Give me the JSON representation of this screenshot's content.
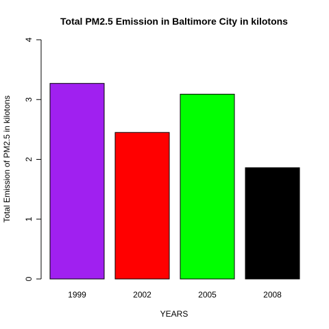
{
  "chart_data": {
    "type": "bar",
    "title": "Total PM2.5 Emission in Baltimore City in kilotons",
    "xlabel": "YEARS",
    "ylabel": "Total Emission of PM2.5 in kilotons",
    "categories": [
      "1999",
      "2002",
      "2005",
      "2008"
    ],
    "values": [
      3.27,
      2.45,
      3.09,
      1.86
    ],
    "colors": [
      "#a020f0",
      "#ff0000",
      "#00ff00",
      "#000000"
    ],
    "ylim": [
      0,
      4
    ],
    "yticks": [
      "0",
      "1",
      "2",
      "3",
      "4"
    ],
    "grid": false,
    "legend": "none"
  }
}
